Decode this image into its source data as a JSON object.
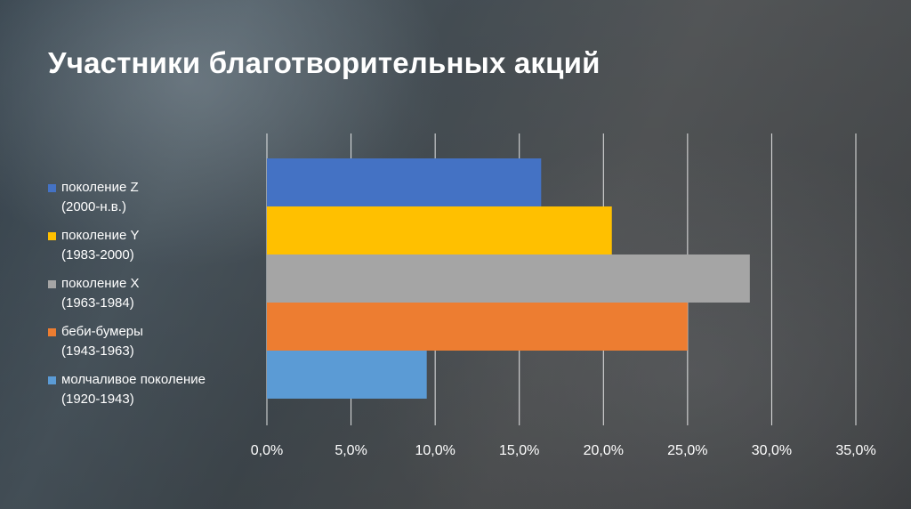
{
  "title": "Участники благотворительных акций",
  "chart_data": {
    "type": "bar",
    "orientation": "horizontal",
    "title": "Участники благотворительных акций",
    "categories": [
      {
        "line1": "поколение Z",
        "line2": "(2000-н.в.)"
      },
      {
        "line1": "поколение Y",
        "line2": "(1983-2000)"
      },
      {
        "line1": "поколение X",
        "line2": "(1963-1984)"
      },
      {
        "line1": "беби-бумеры",
        "line2": "(1943-1963)"
      },
      {
        "line1": "молчаливое поколение",
        "line2": "(1920-1943)"
      }
    ],
    "values": [
      16.3,
      20.5,
      28.7,
      25.0,
      9.5
    ],
    "colors": [
      "#4472C4",
      "#FFC000",
      "#A5A5A5",
      "#ED7D31",
      "#5B9BD5"
    ],
    "xlim": [
      0,
      35
    ],
    "xticks": [
      "0,0%",
      "5,0%",
      "10,0%",
      "15,0%",
      "20,0%",
      "25,0%",
      "30,0%",
      "35,0%"
    ],
    "grid": true,
    "legend_position": "left"
  }
}
